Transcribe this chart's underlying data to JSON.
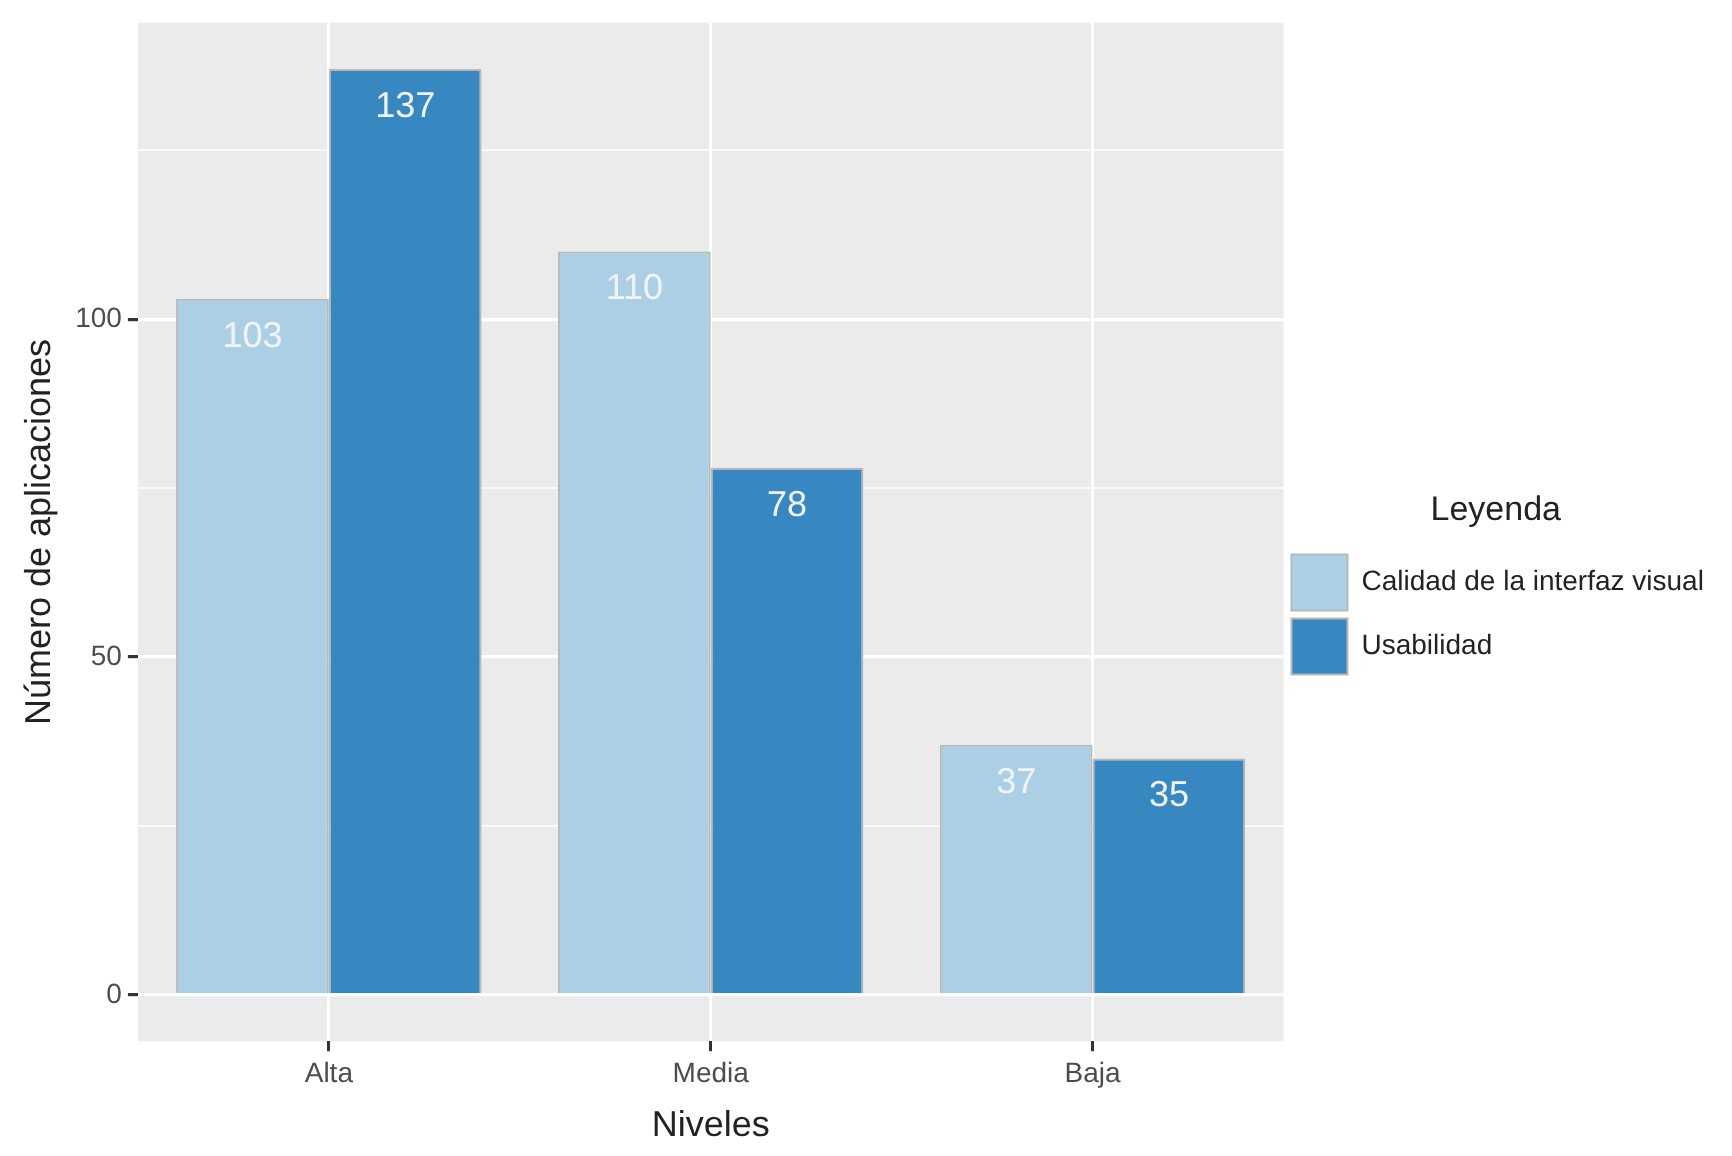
{
  "chart_data": {
    "type": "bar",
    "xlabel": "Niveles",
    "ylabel": "Número de aplicaciones",
    "legend_title": "Leyenda",
    "categories": [
      "Alta",
      "Media",
      "Baja"
    ],
    "series": [
      {
        "name": "Calidad de la interfaz visual",
        "color": "#abd0e6",
        "values": [
          103,
          110,
          37
        ]
      },
      {
        "name": "Usabilidad",
        "color": "#3787c0",
        "values": [
          137,
          78,
          35
        ]
      }
    ],
    "ylim": [
      -6.85,
      143.85
    ],
    "yticks": [
      0,
      {
        "value": 25,
        "label": null
      },
      50,
      {
        "value": 75,
        "label": null
      },
      100,
      {
        "value": 125,
        "label": null
      }
    ],
    "grid": true,
    "legend": "right",
    "data_labels": true
  }
}
